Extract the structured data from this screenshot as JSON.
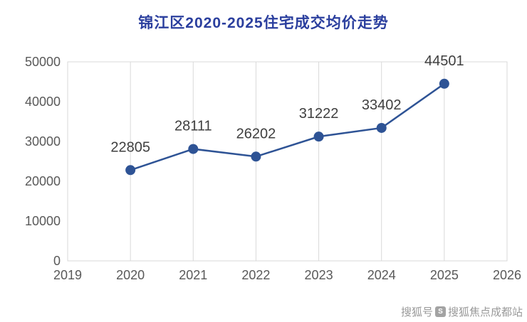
{
  "page": {
    "background": "#ffffff"
  },
  "chart_data": {
    "type": "line",
    "title": "锦江区2020-2025住宅成交均价走势",
    "x": [
      2020,
      2021,
      2022,
      2023,
      2024,
      2025
    ],
    "values": [
      22805,
      28111,
      26202,
      31222,
      33402,
      44501
    ],
    "x_ticks": [
      "2019",
      "2020",
      "2021",
      "2022",
      "2023",
      "2024",
      "2025",
      "2026"
    ],
    "y_ticks": [
      "0",
      "10000",
      "20000",
      "30000",
      "40000",
      "50000"
    ],
    "xlim": [
      2019,
      2026
    ],
    "ylim": [
      0,
      50000
    ],
    "grid": "vertical",
    "legend": "none",
    "title_color": "#2b3f9e",
    "line_color": "#2e5395",
    "marker_color": "#2e5395",
    "label_color": "#3f3f3f",
    "tick_color": "#595959",
    "grid_color": "#d9d9d9"
  },
  "watermark": {
    "prefix": "搜狐号",
    "account": "搜狐焦点成都站",
    "icon": "sohu-logo-icon",
    "icon_glyph": "S"
  }
}
